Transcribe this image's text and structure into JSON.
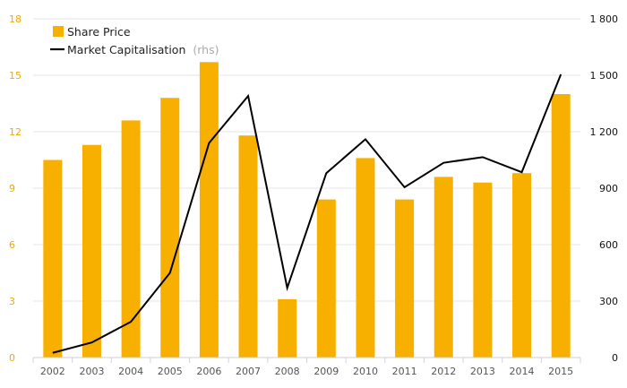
{
  "chart_data": {
    "type": "bar",
    "categories": [
      "2002",
      "2003",
      "2004",
      "2005",
      "2006",
      "2007",
      "2008",
      "2009",
      "2010",
      "2011",
      "2012",
      "2013",
      "2014",
      "2015"
    ],
    "series": [
      {
        "name": "Share Price",
        "type": "bar",
        "axis": "left",
        "color": "#f8b000",
        "values": [
          10.5,
          11.3,
          12.6,
          13.8,
          15.7,
          11.8,
          3.1,
          8.4,
          10.6,
          8.4,
          9.6,
          9.3,
          9.8,
          14.0
        ]
      },
      {
        "name": "Market Capitalisation",
        "name_note": "(rhs)",
        "type": "line",
        "axis": "right",
        "color": "#000000",
        "values": [
          25,
          80,
          190,
          450,
          1140,
          1390,
          370,
          980,
          1160,
          905,
          1035,
          1065,
          985,
          1505
        ]
      }
    ],
    "y_left": {
      "min": 0,
      "max": 18,
      "ticks": [
        "0",
        "3",
        "6",
        "9",
        "12",
        "15",
        "18"
      ],
      "color": "#f2a900"
    },
    "y_right": {
      "min": 0,
      "max": 1800,
      "ticks": [
        "0",
        "300",
        "600",
        "900",
        "1 200",
        "1 500",
        "1 800"
      ]
    },
    "grid": true,
    "legend_position": "top-left"
  }
}
